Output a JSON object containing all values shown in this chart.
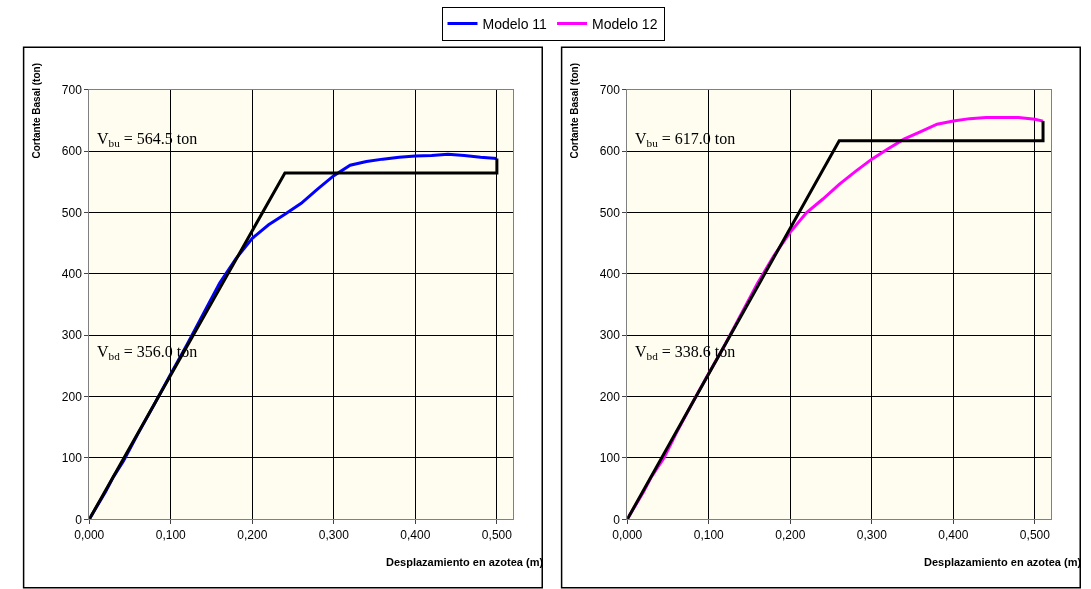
{
  "chart_data": [
    {
      "type": "line",
      "xlabel": "Desplazamiento en azotea (m)",
      "ylabel": "Cortante Basal (ton)",
      "xlim": [
        0,
        0.52
      ],
      "ylim": [
        0,
        700
      ],
      "xticks": [
        {
          "value": 0,
          "label": "0,000"
        },
        {
          "value": 0.1,
          "label": "0,100"
        },
        {
          "value": 0.2,
          "label": "0,200"
        },
        {
          "value": 0.3,
          "label": "0,300"
        },
        {
          "value": 0.4,
          "label": "0,400"
        },
        {
          "value": 0.5,
          "label": "0,500"
        }
      ],
      "yticks": [
        0,
        100,
        200,
        300,
        400,
        500,
        600,
        700
      ],
      "grid": true,
      "legend": "top",
      "annotations": [
        "V$_{bu}$ = 564.5 ton",
        "V$_{bd}$ = 356.0 ton"
      ],
      "series": [
        {
          "name": "Modelo 11",
          "color": "#0000ff",
          "x": [
            0,
            0.02,
            0.03,
            0.042,
            0.06,
            0.08,
            0.1,
            0.12,
            0.14,
            0.16,
            0.18,
            0.2,
            0.22,
            0.24,
            0.26,
            0.28,
            0.3,
            0.32,
            0.34,
            0.36,
            0.38,
            0.4,
            0.42,
            0.44,
            0.46,
            0.48,
            0.5
          ],
          "values": [
            0,
            45,
            70,
            95,
            140,
            188,
            237,
            285,
            335,
            385,
            425,
            458,
            480,
            497,
            515,
            538,
            560,
            577,
            583,
            587,
            590,
            592,
            593,
            595,
            593,
            590,
            588
          ]
        },
        {
          "color": "#000000",
          "x": [
            0,
            0.24,
            0.5,
            0.5
          ],
          "values": [
            0,
            564.5,
            564.5,
            588
          ]
        }
      ]
    },
    {
      "type": "line",
      "xlabel": "Desplazamiento en azotea (m)",
      "ylabel": "Cortante Basal (ton)",
      "xlim": [
        0,
        0.52
      ],
      "ylim": [
        0,
        700
      ],
      "xticks": [
        {
          "value": 0,
          "label": "0,000"
        },
        {
          "value": 0.1,
          "label": "0,100"
        },
        {
          "value": 0.2,
          "label": "0,200"
        },
        {
          "value": 0.3,
          "label": "0,300"
        },
        {
          "value": 0.4,
          "label": "0,400"
        },
        {
          "value": 0.5,
          "label": "0,500"
        }
      ],
      "yticks": [
        0,
        100,
        200,
        300,
        400,
        500,
        600,
        700
      ],
      "grid": true,
      "legend": "top",
      "annotations": [
        "V$_{bu}$ = 617.0 ton",
        "V$_{bd}$ = 338.6 ton"
      ],
      "series": [
        {
          "name": "Modelo 12",
          "color": "#ff00ff",
          "x": [
            0,
            0.02,
            0.03,
            0.045,
            0.06,
            0.08,
            0.1,
            0.12,
            0.14,
            0.16,
            0.18,
            0.2,
            0.22,
            0.24,
            0.26,
            0.28,
            0.3,
            0.32,
            0.34,
            0.36,
            0.38,
            0.4,
            0.42,
            0.44,
            0.46,
            0.48,
            0.5,
            0.51
          ],
          "values": [
            0,
            45,
            70,
            100,
            140,
            190,
            238,
            285,
            335,
            385,
            430,
            468,
            500,
            522,
            546,
            567,
            587,
            604,
            620,
            632,
            644,
            649,
            653,
            655,
            655,
            655,
            652,
            649
          ]
        },
        {
          "color": "#000000",
          "x": [
            0,
            0.26,
            0.51,
            0.51
          ],
          "values": [
            0,
            617,
            617,
            649
          ]
        }
      ]
    }
  ]
}
